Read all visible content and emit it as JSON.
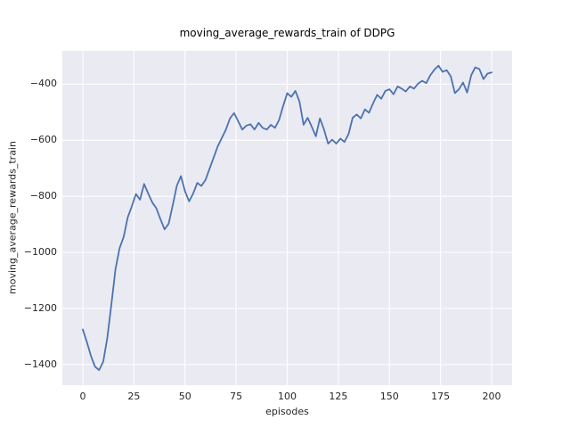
{
  "chart_data": {
    "type": "line",
    "title": "moving_average_rewards_train of DDPG",
    "xlabel": "episodes",
    "ylabel": "moving_average_rewards_train",
    "xlim": [
      -10,
      210
    ],
    "ylim": [
      -1474,
      -281
    ],
    "x_ticks": [
      0,
      25,
      50,
      75,
      100,
      125,
      150,
      175,
      200
    ],
    "x_tick_labels": [
      "0",
      "25",
      "50",
      "75",
      "100",
      "125",
      "150",
      "175",
      "200"
    ],
    "y_ticks": [
      -400,
      -600,
      -800,
      -1000,
      -1200,
      -1400
    ],
    "y_tick_labels": [
      "−400",
      "−600",
      "−800",
      "−1000",
      "−1200",
      "−1400"
    ],
    "grid": true,
    "legend": "none",
    "style": {
      "line_color": "#4c72b0",
      "line_width": 1.8,
      "plot_bg": "#eaeaf2",
      "grid_color": "#ffffff",
      "fig_bg": "#ffffff"
    },
    "series": [
      {
        "name": "moving_average_rewards_train",
        "x": [
          0,
          2,
          4,
          6,
          8,
          10,
          12,
          14,
          16,
          18,
          20,
          22,
          24,
          26,
          28,
          30,
          32,
          34,
          36,
          38,
          40,
          42,
          44,
          46,
          48,
          50,
          52,
          54,
          56,
          58,
          60,
          62,
          64,
          66,
          68,
          70,
          72,
          74,
          76,
          78,
          80,
          82,
          84,
          86,
          88,
          90,
          92,
          94,
          96,
          98,
          100,
          102,
          104,
          106,
          108,
          110,
          112,
          114,
          116,
          118,
          120,
          122,
          124,
          126,
          128,
          130,
          132,
          134,
          136,
          138,
          140,
          142,
          144,
          146,
          148,
          150,
          152,
          154,
          156,
          158,
          160,
          162,
          164,
          166,
          168,
          170,
          172,
          174,
          176,
          178,
          180,
          182,
          184,
          186,
          188,
          190,
          192,
          194,
          196,
          198,
          200
        ],
        "y": [
          -1275,
          -1320,
          -1370,
          -1408,
          -1420,
          -1390,
          -1305,
          -1185,
          -1060,
          -985,
          -945,
          -875,
          -835,
          -792,
          -812,
          -756,
          -790,
          -822,
          -843,
          -882,
          -918,
          -898,
          -832,
          -762,
          -728,
          -782,
          -818,
          -790,
          -752,
          -763,
          -742,
          -702,
          -662,
          -622,
          -592,
          -562,
          -522,
          -503,
          -532,
          -562,
          -548,
          -543,
          -562,
          -538,
          -556,
          -562,
          -545,
          -556,
          -528,
          -478,
          -432,
          -445,
          -424,
          -462,
          -545,
          -520,
          -552,
          -586,
          -522,
          -562,
          -612,
          -598,
          -612,
          -594,
          -606,
          -578,
          -520,
          -508,
          -522,
          -490,
          -502,
          -468,
          -438,
          -452,
          -424,
          -418,
          -436,
          -408,
          -416,
          -426,
          -408,
          -416,
          -398,
          -388,
          -396,
          -368,
          -348,
          -334,
          -356,
          -350,
          -372,
          -432,
          -418,
          -394,
          -430,
          -368,
          -340,
          -346,
          -382,
          -362,
          -358
        ]
      }
    ]
  }
}
